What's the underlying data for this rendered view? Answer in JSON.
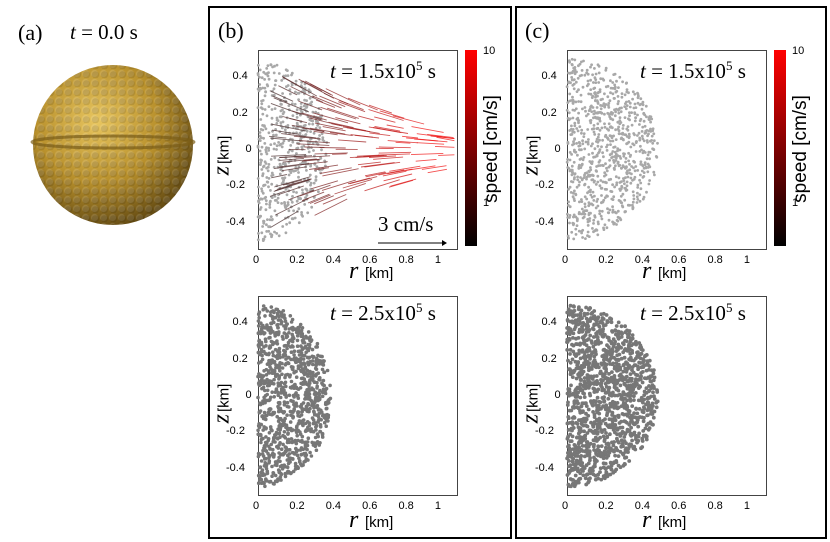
{
  "panel_a": {
    "label": "(a)",
    "time_var": "t",
    "time_text": " = 0.0 s"
  },
  "panel_b": {
    "label": "(b)",
    "top_time_var": "t",
    "top_time_text": " = 1.5x10",
    "top_time_exp": "5",
    "top_time_unit": " s",
    "bottom_time_var": "t",
    "bottom_time_text": " = 2.5x10",
    "bottom_time_exp": "5",
    "bottom_time_unit": " s",
    "scale_arrow_label": "3 cm/s"
  },
  "panel_c": {
    "label": "(c)",
    "top_time_var": "t",
    "top_time_text": " = 1.5x10",
    "top_time_exp": "5",
    "top_time_unit": " s",
    "bottom_time_var": "t",
    "bottom_time_text": " = 2.5x10",
    "bottom_time_exp": "5",
    "bottom_time_unit": " s"
  },
  "axes": {
    "x_name": "r",
    "x_unit": "[km]",
    "y_name": "z",
    "y_unit": "[km]",
    "x_ticks_top_b": [
      "0",
      "0.2",
      "0.4",
      "0.6",
      "0.8",
      "1"
    ],
    "x_ticks_std": [
      "0",
      "0.2",
      "0.4",
      "0.6",
      "0.8",
      "1"
    ],
    "y_ticks": [
      "0.4",
      "0.2",
      "0",
      "-0.2",
      "-0.4"
    ]
  },
  "colorbar": {
    "title": "speed [cm/s]",
    "max_label": "10",
    "mid_label": "1",
    "colors": [
      "#000000",
      "#ff0000"
    ]
  },
  "colors": {
    "sphere": "#c9a437",
    "particle": "#777777",
    "particle_light": "#a8a8a8",
    "vector": "#cc2a2a"
  }
}
